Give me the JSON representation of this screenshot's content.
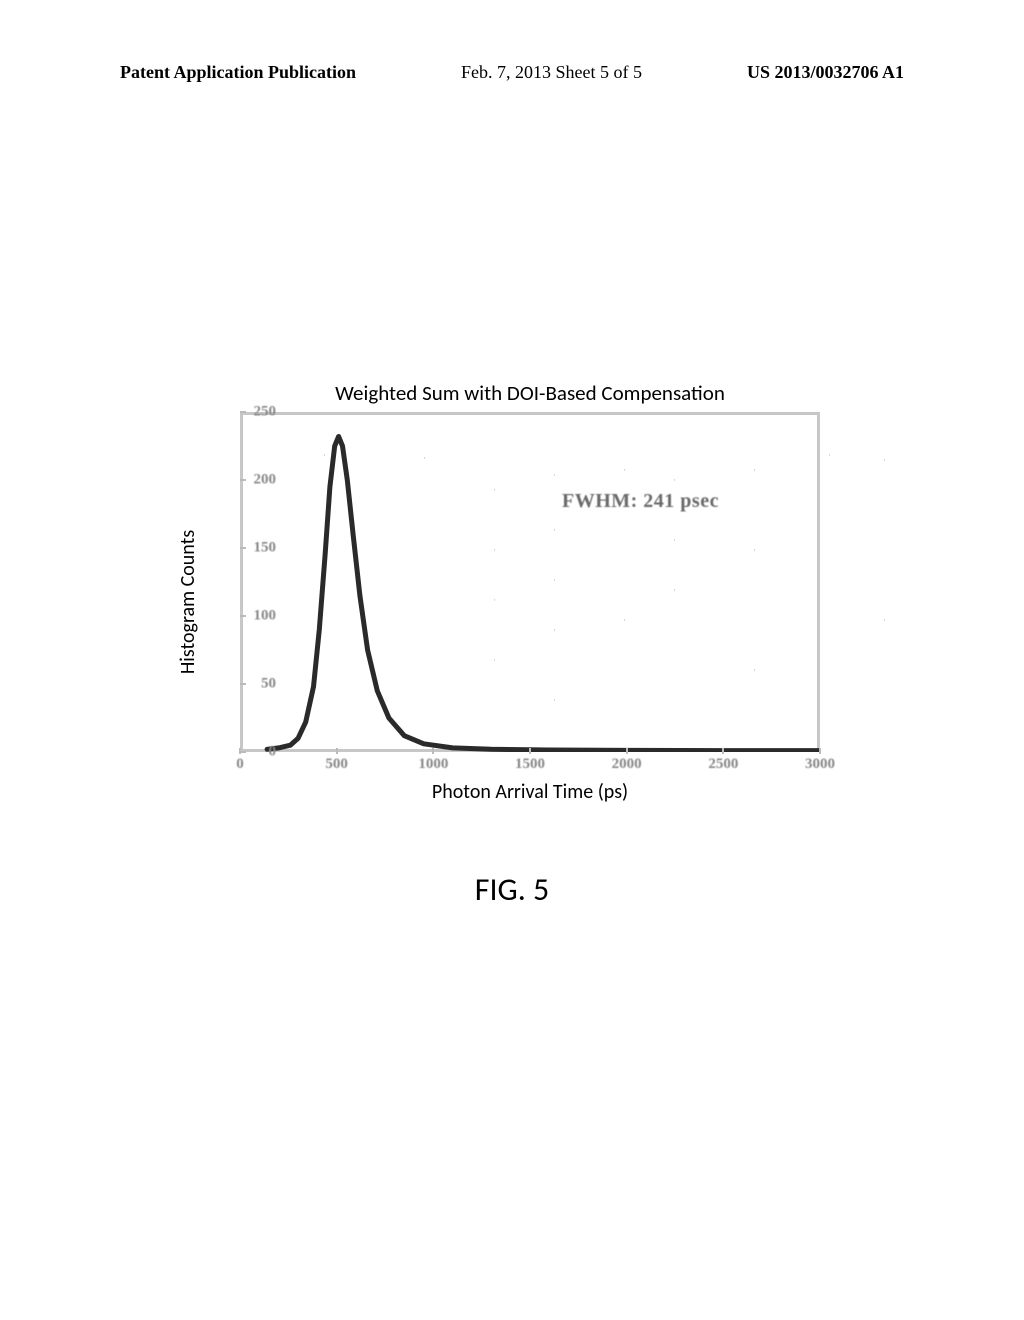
{
  "header": {
    "left": "Patent Application Publication",
    "center": "Feb. 7, 2013  Sheet 5 of 5",
    "right": "US 2013/0032706 A1"
  },
  "chart": {
    "type": "line",
    "title": "Weighted Sum with DOI-Based Compensation",
    "ylabel": "Histogram Counts",
    "xlabel": "Photon Arrival Time (ps)",
    "xlim": [
      0,
      3000
    ],
    "ylim": [
      0,
      250
    ],
    "xtick_step": 500,
    "ytick_step": 50,
    "xtick_labels": [
      "0",
      "500",
      "1000",
      "1500",
      "2000",
      "2500",
      "3000"
    ],
    "ytick_labels": [
      "0",
      "50",
      "100",
      "150",
      "200",
      "250"
    ],
    "annotation": "FWHM: 241 psec",
    "annotation_pos_x": 1650,
    "annotation_pos_y": 195,
    "line_color": "#2a2a2a",
    "line_width": 5,
    "border_color": "#c7c7c7",
    "background_color": "#ffffff",
    "title_fontsize": 21,
    "label_fontsize": 20,
    "tick_fontsize": 15,
    "curve_points": [
      [
        140,
        2
      ],
      [
        200,
        3
      ],
      [
        260,
        5
      ],
      [
        300,
        10
      ],
      [
        340,
        22
      ],
      [
        380,
        48
      ],
      [
        410,
        90
      ],
      [
        440,
        145
      ],
      [
        465,
        195
      ],
      [
        490,
        225
      ],
      [
        510,
        232
      ],
      [
        530,
        225
      ],
      [
        555,
        200
      ],
      [
        585,
        160
      ],
      [
        620,
        115
      ],
      [
        660,
        75
      ],
      [
        710,
        45
      ],
      [
        770,
        25
      ],
      [
        850,
        12
      ],
      [
        950,
        6
      ],
      [
        1100,
        3
      ],
      [
        1300,
        2
      ],
      [
        1600,
        1.5
      ],
      [
        2000,
        1.2
      ],
      [
        2500,
        1
      ],
      [
        3000,
        1
      ]
    ]
  },
  "caption": "FIG. 5"
}
